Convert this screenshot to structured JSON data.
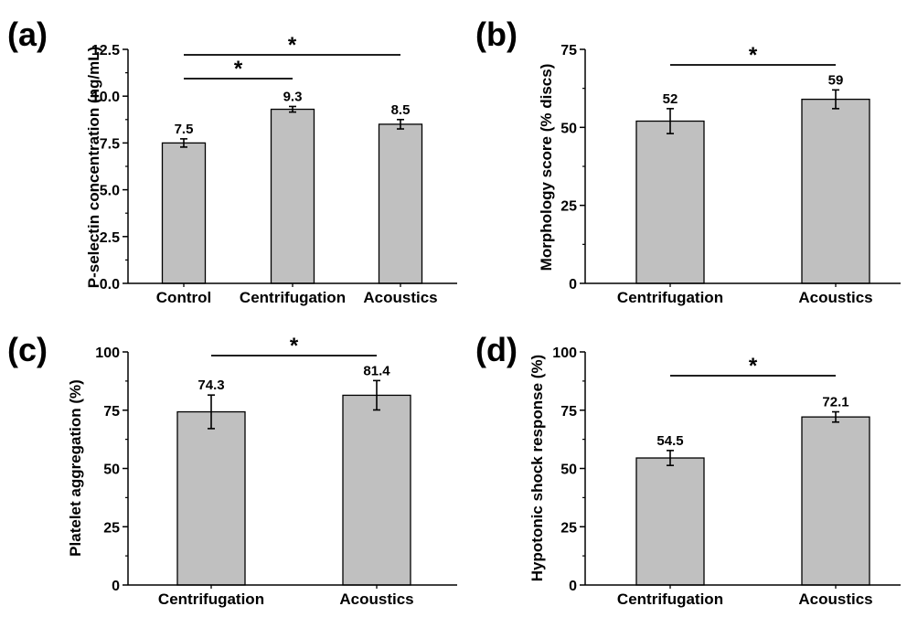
{
  "colors": {
    "bar_fill": "#c0c0c0",
    "stroke": "#000000",
    "background": "#ffffff"
  },
  "chart_data": [
    {
      "type": "bar",
      "panel": "(a)",
      "title": "",
      "ylabel": "P-selectin concentration (ng/mL)",
      "xlabel": "",
      "categories": [
        "Control",
        "Centrifugation",
        "Acoustics"
      ],
      "values": [
        7.5,
        9.3,
        8.5
      ],
      "errors": [
        0.22,
        0.15,
        0.25
      ],
      "data_labels": [
        "7.5",
        "9.3",
        "8.5"
      ],
      "ylim": [
        0,
        12.5
      ],
      "yticks": [
        0,
        2.5,
        5.0,
        7.5,
        10.0,
        12.5
      ],
      "ytick_labels": [
        "0.0",
        "2.5",
        "5.0",
        "7.5",
        "10.0",
        "12.5"
      ],
      "significance": [
        {
          "from": 0,
          "to": 1,
          "label": "*"
        },
        {
          "from": 0,
          "to": 2,
          "label": "*"
        }
      ],
      "grid": false,
      "legend": "none"
    },
    {
      "type": "bar",
      "panel": "(b)",
      "title": "",
      "ylabel": "Morphology score (% discs)",
      "xlabel": "",
      "categories": [
        "Centrifugation",
        "Acoustics"
      ],
      "values": [
        52,
        59
      ],
      "errors": [
        4,
        3
      ],
      "data_labels": [
        "52",
        "59"
      ],
      "ylim": [
        0,
        75
      ],
      "yticks": [
        0,
        25,
        50,
        75
      ],
      "ytick_labels": [
        "0",
        "25",
        "50",
        "75"
      ],
      "significance": [
        {
          "from": 0,
          "to": 1,
          "label": "*"
        }
      ],
      "grid": false,
      "legend": "none"
    },
    {
      "type": "bar",
      "panel": "(c)",
      "title": "",
      "ylabel": "Platelet aggregation (%)",
      "xlabel": "",
      "categories": [
        "Centrifugation",
        "Acoustics"
      ],
      "values": [
        74.3,
        81.4
      ],
      "errors": [
        7.2,
        6.3
      ],
      "data_labels": [
        "74.3",
        "81.4"
      ],
      "ylim": [
        0,
        100
      ],
      "yticks": [
        0,
        25,
        50,
        75,
        100
      ],
      "ytick_labels": [
        "0",
        "25",
        "50",
        "75",
        "100"
      ],
      "significance": [
        {
          "from": 0,
          "to": 1,
          "label": "*"
        }
      ],
      "grid": false,
      "legend": "none"
    },
    {
      "type": "bar",
      "panel": "(d)",
      "title": "",
      "ylabel": "Hypotonic shock response (%)",
      "xlabel": "",
      "categories": [
        "Centrifugation",
        "Acoustics"
      ],
      "values": [
        54.5,
        72.1
      ],
      "errors": [
        3.2,
        2.2
      ],
      "data_labels": [
        "54.5",
        "72.1"
      ],
      "ylim": [
        0,
        100
      ],
      "yticks": [
        0,
        25,
        50,
        75,
        100
      ],
      "ytick_labels": [
        "0",
        "25",
        "50",
        "75",
        "100"
      ],
      "significance": [
        {
          "from": 0,
          "to": 1,
          "label": "*"
        }
      ],
      "grid": false,
      "legend": "none"
    }
  ]
}
